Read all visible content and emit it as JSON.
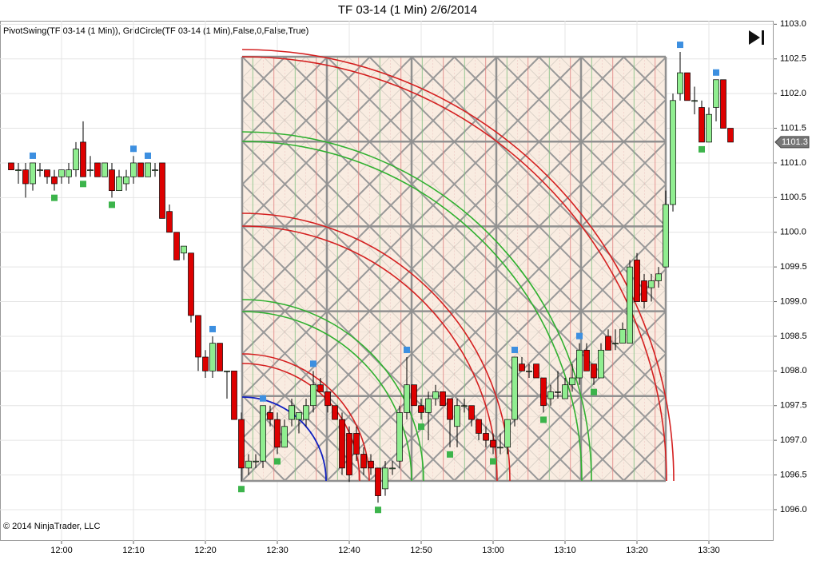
{
  "chart_data": {
    "type": "candlestick",
    "title": "TF 03-14 (1 Min)  2/6/2014",
    "indicator_label": "PivotSwing(TF 03-14 (1 Min)), GridCircle(TF 03-14 (1 Min),False,0,False,True)",
    "copyright": "© 2014 NinjaTrader, LLC",
    "up_color": "#90ee90",
    "down_color": "#dd0000",
    "open": [
      1101.0,
      1100.9,
      1100.9,
      1100.7,
      1100.9,
      1100.9,
      1100.8,
      1100.8,
      1100.8,
      1100.9,
      1101.3,
      1100.9,
      1101.0,
      1100.8,
      1100.9,
      1100.6,
      1100.7,
      1100.8,
      1101.0,
      1100.8,
      1100.9,
      1101.0,
      1100.3,
      1100.0,
      1099.7,
      1099.7,
      1098.8,
      1098.2,
      1098.0,
      1098.4,
      1098.0,
      1098.0,
      1097.3,
      1096.6,
      1096.7,
      1096.7,
      1097.4,
      1097.3,
      1096.9,
      1097.3,
      1097.3,
      1097.3,
      1097.5,
      1097.8,
      1097.7,
      1097.5,
      1097.3,
      1097.1,
      1097.1,
      1096.8,
      1096.7,
      1096.6,
      1096.3,
      1096.6,
      1096.7,
      1097.4,
      1097.8,
      1097.5,
      1097.4,
      1097.6,
      1097.7,
      1097.6,
      1097.2,
      1097.5,
      1097.5,
      1097.3,
      1097.1,
      1097.0,
      1096.9,
      1096.9,
      1097.3,
      1098.1,
      1098.0,
      1098.1,
      1097.9,
      1097.6,
      1097.7,
      1097.6,
      1097.8,
      1097.9,
      1098.3,
      1098.1,
      1097.9,
      1098.5,
      1098.4,
      1098.4,
      1098.4,
      1099.6,
      1099.3,
      1099.2,
      1099.3,
      1099.5,
      1100.4,
      1102.0,
      1102.3,
      1101.9,
      1101.8,
      1101.3,
      1101.8,
      1102.2,
      1101.5
    ],
    "high": [
      1101.0,
      1101.0,
      1101.0,
      1101.0,
      1101.0,
      1100.9,
      1100.9,
      1100.9,
      1101.0,
      1101.3,
      1101.6,
      1101.1,
      1101.0,
      1101.0,
      1101.0,
      1100.9,
      1100.9,
      1101.1,
      1101.0,
      1101.0,
      1101.0,
      1101.0,
      1100.4,
      1100.0,
      1099.8,
      1099.7,
      1098.8,
      1098.3,
      1098.5,
      1098.4,
      1098.0,
      1098.0,
      1097.4,
      1096.8,
      1096.8,
      1097.5,
      1097.5,
      1097.4,
      1097.3,
      1097.6,
      1097.4,
      1097.6,
      1098.0,
      1097.9,
      1097.7,
      1097.5,
      1097.4,
      1097.2,
      1097.2,
      1096.9,
      1096.8,
      1096.6,
      1096.7,
      1096.7,
      1097.5,
      1098.2,
      1097.8,
      1097.6,
      1097.7,
      1097.8,
      1097.7,
      1097.6,
      1097.6,
      1097.6,
      1097.5,
      1097.3,
      1097.2,
      1097.1,
      1097.1,
      1097.3,
      1098.2,
      1098.2,
      1098.1,
      1098.1,
      1097.9,
      1097.8,
      1098.0,
      1097.9,
      1098.1,
      1098.4,
      1098.4,
      1098.1,
      1098.4,
      1098.6,
      1098.6,
      1098.7,
      1099.6,
      1099.7,
      1099.4,
      1099.4,
      1099.5,
      1100.6,
      1102.0,
      1102.6,
      1102.3,
      1102.1,
      1101.9,
      1101.8,
      1102.2,
      1102.2,
      1101.5
    ],
    "low": [
      1100.9,
      1100.7,
      1100.5,
      1100.6,
      1100.8,
      1100.7,
      1100.6,
      1100.7,
      1100.7,
      1100.8,
      1100.8,
      1100.8,
      1100.8,
      1100.8,
      1100.5,
      1100.6,
      1100.6,
      1100.7,
      1100.8,
      1100.8,
      1100.8,
      1100.2,
      1100.0,
      1099.6,
      1099.6,
      1098.7,
      1098.0,
      1097.9,
      1097.9,
      1098.0,
      1097.6,
      1097.3,
      1096.4,
      1096.5,
      1096.6,
      1096.6,
      1097.2,
      1096.8,
      1096.9,
      1097.2,
      1097.1,
      1097.2,
      1097.4,
      1097.7,
      1097.4,
      1097.3,
      1096.5,
      1096.4,
      1096.7,
      1096.5,
      1096.5,
      1096.1,
      1096.2,
      1096.5,
      1096.6,
      1097.3,
      1097.5,
      1097.3,
      1097.0,
      1097.5,
      1097.5,
      1096.9,
      1096.9,
      1097.4,
      1097.2,
      1097.0,
      1096.9,
      1096.8,
      1096.8,
      1096.8,
      1097.2,
      1098.0,
      1097.9,
      1097.9,
      1097.4,
      1097.5,
      1097.6,
      1097.6,
      1097.7,
      1097.8,
      1098.0,
      1097.8,
      1097.9,
      1098.3,
      1098.3,
      1098.4,
      1098.4,
      1099.0,
      1098.9,
      1099.0,
      1099.2,
      1099.5,
      1100.3,
      1101.9,
      1101.9,
      1101.7,
      1101.3,
      1101.3,
      1101.6,
      1101.5,
      1101.3
    ],
    "close": [
      1100.9,
      1100.9,
      1100.7,
      1101.0,
      1100.9,
      1100.8,
      1100.7,
      1100.9,
      1100.9,
      1101.2,
      1100.8,
      1100.9,
      1100.8,
      1101.0,
      1100.6,
      1100.8,
      1100.8,
      1101.0,
      1100.8,
      1101.0,
      1100.9,
      1100.2,
      1100.0,
      1099.6,
      1099.8,
      1098.8,
      1098.2,
      1098.0,
      1098.4,
      1098.0,
      1098.0,
      1097.3,
      1096.6,
      1096.7,
      1096.7,
      1097.5,
      1097.3,
      1096.9,
      1097.2,
      1097.5,
      1097.4,
      1097.5,
      1097.8,
      1097.7,
      1097.5,
      1097.3,
      1096.6,
      1096.5,
      1096.8,
      1096.6,
      1096.6,
      1096.2,
      1096.6,
      1096.6,
      1097.4,
      1097.8,
      1097.5,
      1097.4,
      1097.6,
      1097.7,
      1097.5,
      1097.3,
      1097.5,
      1097.5,
      1097.3,
      1097.1,
      1097.0,
      1096.9,
      1096.9,
      1097.3,
      1098.2,
      1098.0,
      1098.0,
      1097.9,
      1097.5,
      1097.7,
      1097.7,
      1097.8,
      1097.9,
      1098.3,
      1098.0,
      1097.9,
      1098.3,
      1098.3,
      1098.4,
      1098.6,
      1099.5,
      1099.0,
      1099.0,
      1099.3,
      1099.4,
      1100.4,
      1101.9,
      1102.3,
      1101.9,
      1101.9,
      1101.3,
      1101.7,
      1102.2,
      1101.5,
      1101.3
    ],
    "pivot_highs": {
      "color": "#3d8fe0",
      "values": [
        null,
        null,
        null,
        1101.0,
        null,
        null,
        null,
        null,
        null,
        null,
        null,
        null,
        null,
        null,
        null,
        null,
        null,
        1101.1,
        null,
        1101.0,
        null,
        null,
        null,
        null,
        null,
        null,
        null,
        null,
        1098.5,
        null,
        null,
        null,
        null,
        null,
        null,
        1097.5,
        null,
        null,
        null,
        null,
        null,
        null,
        1098.0,
        null,
        null,
        null,
        null,
        null,
        null,
        null,
        null,
        null,
        null,
        null,
        null,
        1098.2,
        null,
        null,
        null,
        null,
        null,
        null,
        null,
        null,
        null,
        null,
        null,
        null,
        null,
        null,
        1098.2,
        null,
        null,
        null,
        null,
        null,
        null,
        null,
        null,
        1098.4,
        null,
        null,
        null,
        null,
        null,
        null,
        null,
        null,
        null,
        null,
        null,
        null,
        null,
        1102.6,
        null,
        null,
        null,
        null,
        1102.2,
        null,
        null
      ]
    },
    "pivot_lows": {
      "color": "#3cb44b",
      "values": [
        null,
        null,
        null,
        null,
        null,
        null,
        1100.6,
        null,
        null,
        null,
        1100.8,
        null,
        null,
        null,
        1100.5,
        null,
        null,
        null,
        null,
        null,
        null,
        null,
        null,
        null,
        null,
        null,
        null,
        null,
        null,
        null,
        null,
        null,
        1096.4,
        null,
        null,
        null,
        null,
        1096.8,
        null,
        null,
        null,
        null,
        null,
        null,
        null,
        null,
        null,
        null,
        null,
        null,
        null,
        1096.1,
        null,
        null,
        null,
        null,
        null,
        1097.3,
        null,
        null,
        null,
        1096.9,
        null,
        null,
        null,
        null,
        null,
        1096.8,
        null,
        null,
        null,
        null,
        null,
        null,
        1097.4,
        null,
        null,
        null,
        null,
        null,
        null,
        1097.8,
        null,
        null,
        null,
        null,
        null,
        null,
        null,
        null,
        null,
        null,
        null,
        null,
        null,
        null,
        1101.3,
        null,
        null,
        null,
        null
      ]
    },
    "ylim": [
      1095.55,
      1103.05
    ],
    "yticks": [
      {
        "value": 1096.0,
        "label": "1096.0"
      },
      {
        "value": 1096.5,
        "label": "1096.5"
      },
      {
        "value": 1097.0,
        "label": "1097.0"
      },
      {
        "value": 1097.5,
        "label": "1097.5"
      },
      {
        "value": 1098.0,
        "label": "1098.0"
      },
      {
        "value": 1098.5,
        "label": "1098.5"
      },
      {
        "value": 1099.0,
        "label": "1099.0"
      },
      {
        "value": 1099.5,
        "label": "1099.5"
      },
      {
        "value": 1100.0,
        "label": "1100.0"
      },
      {
        "value": 1100.5,
        "label": "1100.5"
      },
      {
        "value": 1101.0,
        "label": "1101.0"
      },
      {
        "value": 1101.5,
        "label": "1101.5"
      },
      {
        "value": 1102.0,
        "label": "1102.0"
      },
      {
        "value": 1102.5,
        "label": "1102.5"
      },
      {
        "value": 1103.0,
        "label": "1103.0"
      }
    ],
    "xticks": [
      {
        "value": 7,
        "label": "12:00"
      },
      {
        "value": 17,
        "label": "12:10"
      },
      {
        "value": 27,
        "label": "12:20"
      },
      {
        "value": 37,
        "label": "12:30"
      },
      {
        "value": 47,
        "label": "12:40"
      },
      {
        "value": 57,
        "label": "12:50"
      },
      {
        "value": 67,
        "label": "13:00"
      },
      {
        "value": 77,
        "label": "13:10"
      },
      {
        "value": 87,
        "label": "13:20"
      },
      {
        "value": 97,
        "label": "13:30"
      }
    ],
    "last_price": {
      "value": 1101.3,
      "label": "1101.3"
    },
    "grid": true
  }
}
